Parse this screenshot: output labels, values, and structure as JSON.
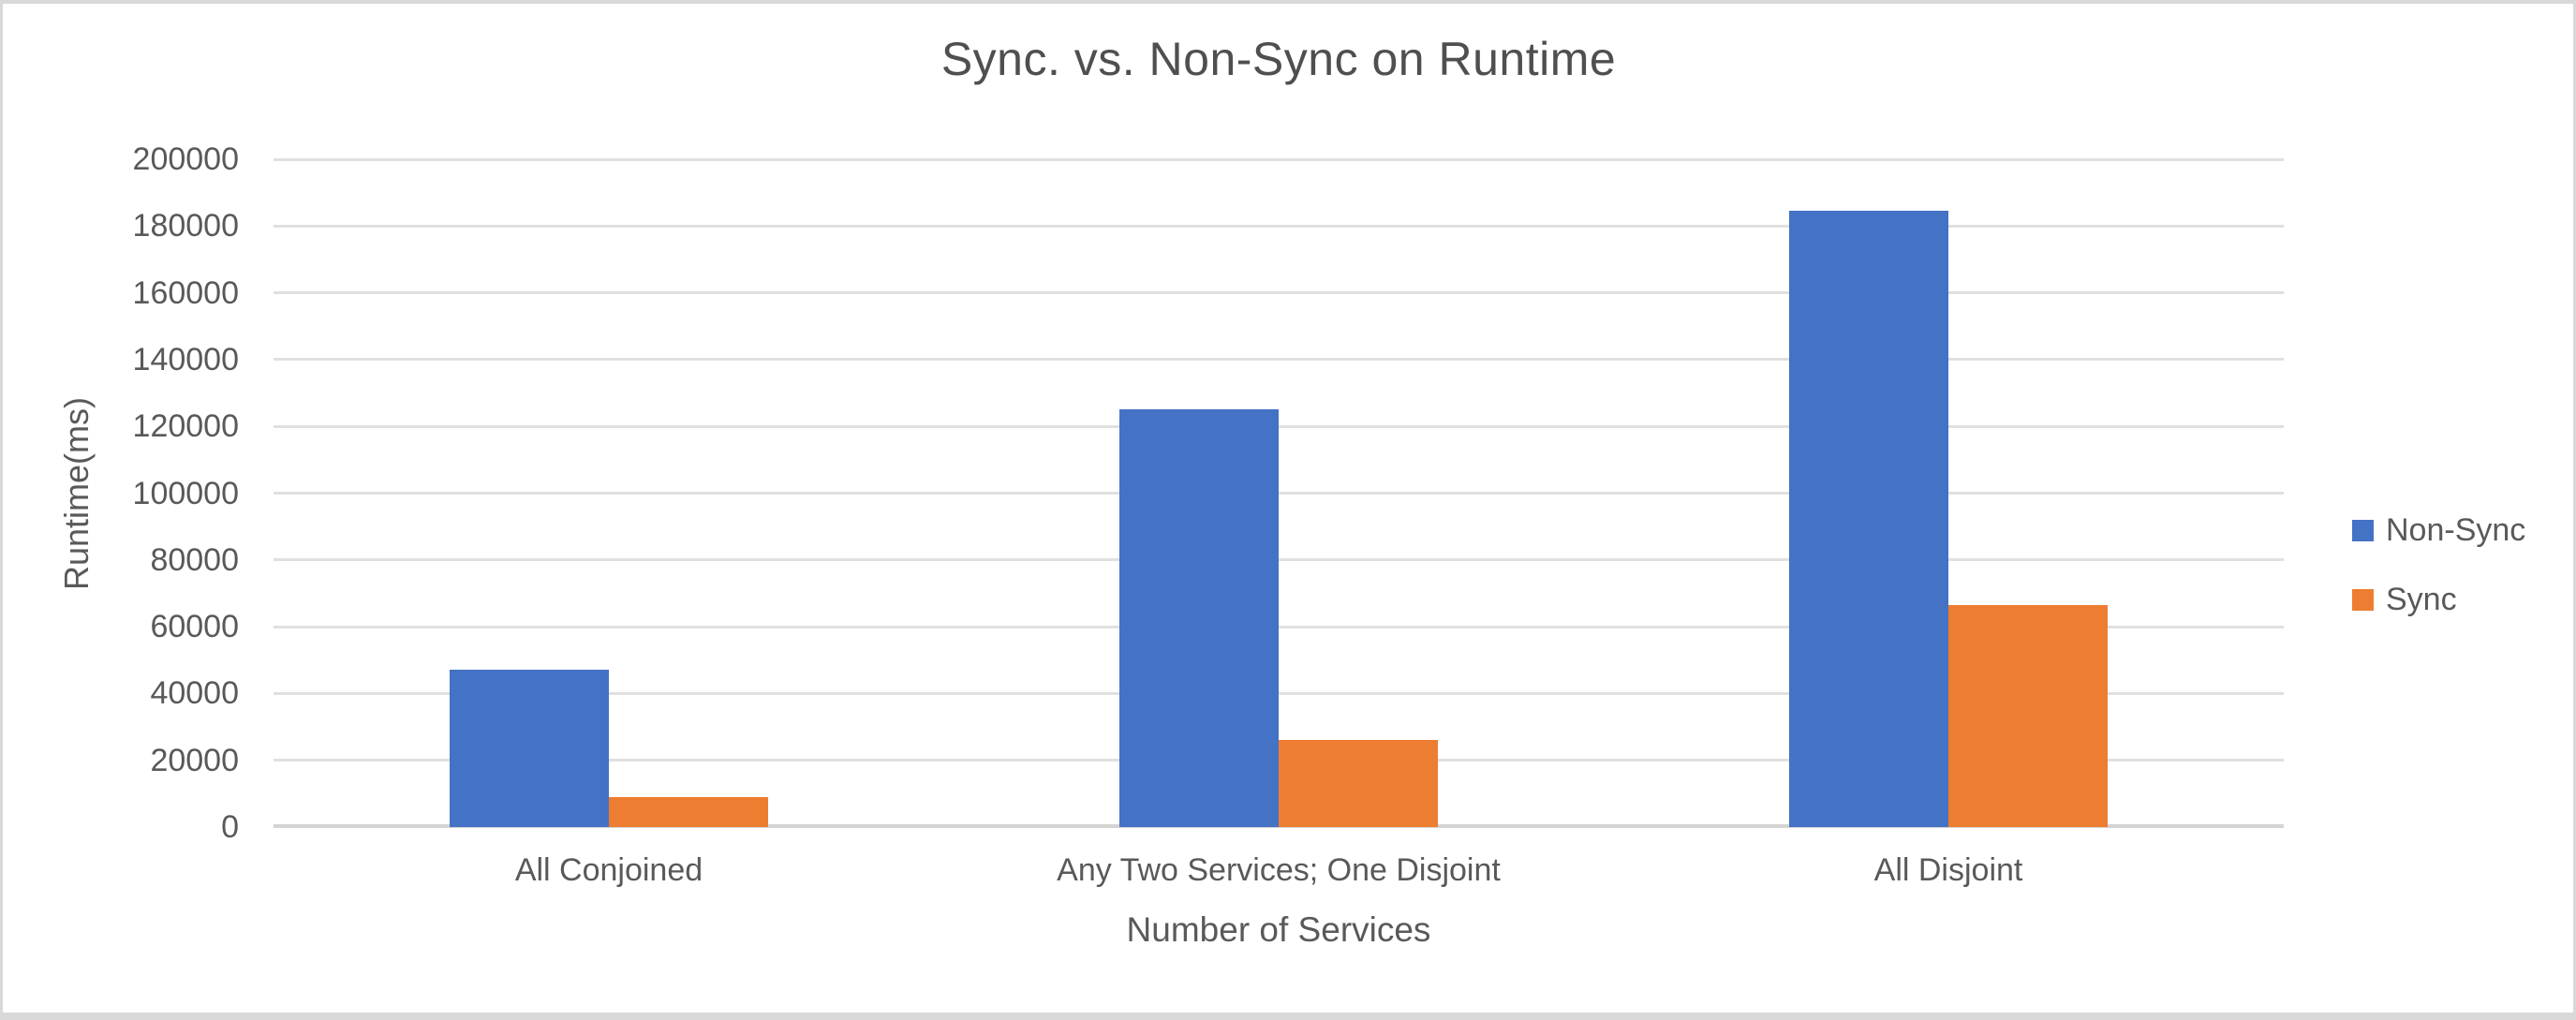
{
  "chart_data": {
    "type": "bar",
    "title": "Sync. vs. Non-Sync on Runtime",
    "xlabel": "Number of Services",
    "ylabel": "Runtime(ms)",
    "categories": [
      "All Conjoined",
      "Any Two Services; One Disjoint",
      "All Disjoint"
    ],
    "series": [
      {
        "name": "Non-Sync",
        "color": "#4472C4",
        "values": [
          47000,
          125000,
          184500
        ]
      },
      {
        "name": "Sync",
        "color": "#ED7D31",
        "values": [
          9000,
          26000,
          66500
        ]
      }
    ],
    "ylim": [
      0,
      200000
    ],
    "yticks": [
      0,
      20000,
      40000,
      60000,
      80000,
      100000,
      120000,
      140000,
      160000,
      180000,
      200000
    ],
    "grid": "horizontal",
    "legend_position": "right"
  },
  "colors": {
    "background": "#FFFFFF",
    "frame_border": "#D9D9D9",
    "gridline": "#E0E0E0",
    "axis_line": "#D4D4D4",
    "text": "#595959",
    "title_text": "#4F4F4F"
  }
}
